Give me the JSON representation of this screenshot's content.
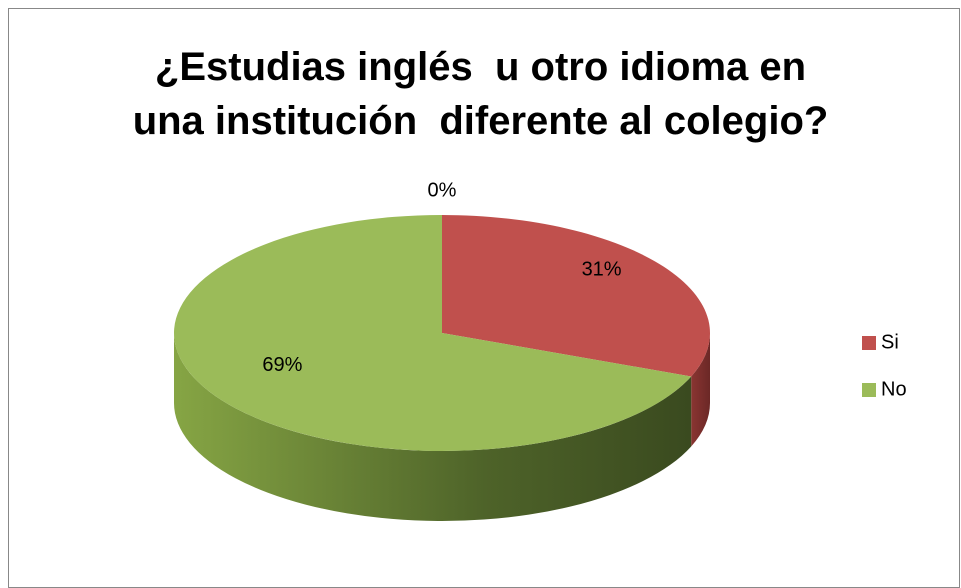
{
  "chart_data": {
    "type": "pie",
    "title": "¿Estudias inglés  u otro idioma en\nuna institución  diferente al colegio?",
    "categories": [
      "Si",
      "No",
      null
    ],
    "values": [
      31,
      69,
      0
    ],
    "value_labels": [
      "31%",
      "69%",
      "0%"
    ],
    "colors": [
      "#c0504d",
      "#9bbb59",
      "#4f81bd"
    ],
    "legend": "right"
  }
}
